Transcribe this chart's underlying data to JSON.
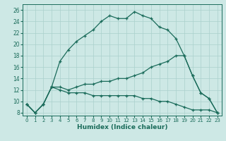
{
  "xlabel": "Humidex (Indice chaleur)",
  "bg_color": "#cde8e5",
  "grid_color": "#aad0cc",
  "line_color": "#1a6b5a",
  "xlim": [
    -0.5,
    23.5
  ],
  "ylim": [
    7.5,
    27.0
  ],
  "xticks": [
    0,
    1,
    2,
    3,
    4,
    5,
    6,
    7,
    8,
    9,
    10,
    11,
    12,
    13,
    14,
    15,
    16,
    17,
    18,
    19,
    20,
    21,
    22,
    23
  ],
  "yticks": [
    8,
    10,
    12,
    14,
    16,
    18,
    20,
    22,
    24,
    26
  ],
  "line1_x": [
    0,
    1,
    2,
    3,
    4,
    5,
    6,
    7,
    8,
    9,
    10,
    11,
    12,
    13,
    14,
    15,
    16,
    17,
    18,
    19,
    20,
    21,
    22,
    23
  ],
  "line1_y": [
    9.5,
    8.0,
    9.5,
    12.5,
    17.0,
    19.0,
    20.5,
    21.5,
    22.5,
    24.0,
    25.0,
    24.5,
    24.5,
    25.7,
    25.0,
    24.5,
    23.0,
    22.5,
    21.0,
    18.0,
    14.5,
    11.5,
    10.5,
    8.0
  ],
  "line2_x": [
    0,
    1,
    2,
    3,
    4,
    5,
    6,
    7,
    8,
    9,
    10,
    11,
    12,
    13,
    14,
    15,
    16,
    17,
    18,
    19,
    20,
    21,
    22,
    23
  ],
  "line2_y": [
    9.5,
    8.0,
    9.5,
    12.5,
    12.0,
    11.5,
    11.5,
    11.5,
    11.0,
    11.0,
    11.0,
    11.0,
    11.0,
    11.0,
    10.5,
    10.5,
    10.0,
    10.0,
    9.5,
    9.0,
    8.5,
    8.5,
    8.5,
    8.0
  ],
  "line3_x": [
    0,
    1,
    2,
    3,
    4,
    5,
    6,
    7,
    8,
    9,
    10,
    11,
    12,
    13,
    14,
    15,
    16,
    17,
    18,
    19,
    20,
    21,
    22,
    23
  ],
  "line3_y": [
    9.5,
    8.0,
    9.5,
    12.5,
    12.5,
    12.0,
    12.5,
    13.0,
    13.0,
    13.5,
    13.5,
    14.0,
    14.0,
    14.5,
    15.0,
    16.0,
    16.5,
    17.0,
    18.0,
    18.0,
    14.5,
    11.5,
    10.5,
    8.0
  ]
}
